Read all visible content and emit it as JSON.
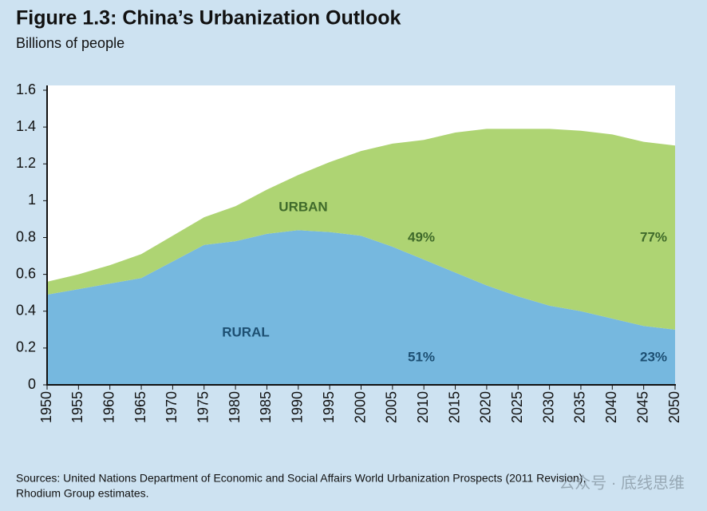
{
  "chart_data": {
    "type": "stacked_area",
    "title": "Figure 1.3: China’s Urbanization Outlook",
    "subtitle": "Billions of people",
    "x": [
      1950,
      1955,
      1960,
      1965,
      1970,
      1975,
      1980,
      1985,
      1990,
      1995,
      2000,
      2005,
      2010,
      2015,
      2020,
      2025,
      2030,
      2035,
      2040,
      2045,
      2050
    ],
    "series": [
      {
        "name": "RURAL",
        "color": "#76b8df",
        "label_color": "#1d4f72",
        "values": [
          0.49,
          0.52,
          0.55,
          0.58,
          0.67,
          0.76,
          0.78,
          0.82,
          0.84,
          0.83,
          0.81,
          0.75,
          0.68,
          0.61,
          0.54,
          0.48,
          0.43,
          0.4,
          0.36,
          0.32,
          0.3
        ]
      },
      {
        "name": "URBAN",
        "color": "#aed473",
        "label_color": "#3f6a2b",
        "values": [
          0.07,
          0.08,
          0.1,
          0.13,
          0.14,
          0.15,
          0.19,
          0.24,
          0.3,
          0.38,
          0.46,
          0.56,
          0.65,
          0.76,
          0.85,
          0.91,
          0.96,
          0.98,
          1.0,
          1.0,
          1.0
        ]
      }
    ],
    "annotations": [
      {
        "text": "49%",
        "series": 1
      },
      {
        "text": "77%",
        "series": 1
      },
      {
        "text": "51%",
        "series": 0
      },
      {
        "text": "23%",
        "series": 0
      }
    ],
    "xlim": [
      1950,
      2050
    ],
    "xticks": [
      1950,
      1955,
      1960,
      1965,
      1970,
      1975,
      1980,
      1985,
      1990,
      1995,
      2000,
      2005,
      2010,
      2015,
      2020,
      2025,
      2030,
      2035,
      2040,
      2045,
      2050
    ],
    "ylim": [
      0,
      1.6
    ],
    "yticks": [
      0,
      0.2,
      0.4,
      0.6,
      0.8,
      1,
      1.2,
      1.4,
      1.6
    ],
    "source": "Sources: United Nations Department of Economic and Social Affairs World Urbanization Prospects (2011 Revision),",
    "source_line2": "Rhodium Group estimates.",
    "watermark": "公众号 · 底线思维"
  }
}
